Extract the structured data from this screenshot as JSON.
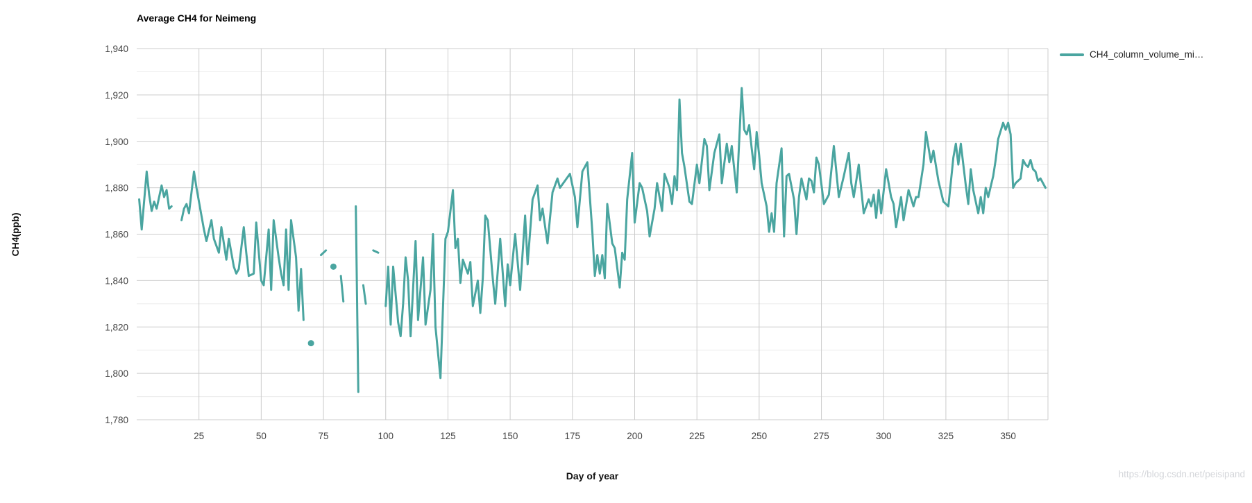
{
  "title": "Average CH4 for Neimeng",
  "watermark": "https://blog.csdn.net/peisipand",
  "legend": {
    "label": "CH4_column_volume_mi…",
    "swatch_color": "#4aa5a0"
  },
  "colors": {
    "series": "#4aa5a0",
    "grid_major": "#cccccc",
    "grid_minor": "#ebebeb",
    "tick_label": "#444444",
    "title": "#000000",
    "watermark": "#d4d6da",
    "background": "#ffffff"
  },
  "chart_data": {
    "type": "line",
    "title": "Average CH4 for Neimeng",
    "xlabel": "Day of year",
    "ylabel": "CH4(ppb)",
    "xlim": [
      0,
      366
    ],
    "ylim": [
      1780,
      1940
    ],
    "x_ticks": [
      25,
      50,
      75,
      100,
      125,
      150,
      175,
      200,
      225,
      250,
      275,
      300,
      325,
      350
    ],
    "y_ticks": [
      1780,
      1800,
      1820,
      1840,
      1860,
      1880,
      1900,
      1920,
      1940
    ],
    "y_minor_ticks": [
      1790,
      1810,
      1830,
      1850,
      1870,
      1890,
      1910,
      1930
    ],
    "grid": "major-and-minor-horizontal, major-vertical",
    "legend_position": "right",
    "series": [
      {
        "name": "CH4_column_volume_mi…",
        "color": "#4aa5a0",
        "points": [
          [
            1,
            1875
          ],
          [
            2,
            1862
          ],
          [
            4,
            1887
          ],
          [
            5,
            1877
          ],
          [
            6,
            1870
          ],
          [
            7,
            1874
          ],
          [
            8,
            1871
          ],
          [
            10,
            1881
          ],
          [
            11,
            1876
          ],
          [
            12,
            1879
          ],
          [
            13,
            1871
          ],
          [
            14,
            1872
          ],
          [
            15,
            null
          ],
          [
            18,
            1866
          ],
          [
            19,
            1871
          ],
          [
            20,
            1873
          ],
          [
            21,
            1869
          ],
          [
            23,
            1887
          ],
          [
            24,
            1880
          ],
          [
            26,
            1868
          ],
          [
            27,
            1862
          ],
          [
            28,
            1857
          ],
          [
            30,
            1866
          ],
          [
            31,
            1858
          ],
          [
            33,
            1852
          ],
          [
            34,
            1863
          ],
          [
            36,
            1849
          ],
          [
            37,
            1858
          ],
          [
            39,
            1846
          ],
          [
            40,
            1843
          ],
          [
            41,
            1845
          ],
          [
            43,
            1863
          ],
          [
            44,
            1852
          ],
          [
            45,
            1842
          ],
          [
            47,
            1843
          ],
          [
            48,
            1865
          ],
          [
            50,
            1840
          ],
          [
            51,
            1838
          ],
          [
            53,
            1862
          ],
          [
            54,
            1836
          ],
          [
            55,
            1866
          ],
          [
            57,
            1850
          ],
          [
            58,
            1843
          ],
          [
            59,
            1838
          ],
          [
            60,
            1862
          ],
          [
            61,
            1836
          ],
          [
            62,
            1866
          ],
          [
            64,
            1850
          ],
          [
            65,
            1827
          ],
          [
            66,
            1845
          ],
          [
            67,
            1823
          ],
          [
            68,
            null
          ],
          [
            70,
            1813
          ],
          [
            71,
            null
          ],
          [
            74,
            1851
          ],
          [
            76,
            1853
          ],
          [
            77,
            null
          ],
          [
            79,
            1846
          ],
          [
            80,
            null
          ],
          [
            82,
            1842
          ],
          [
            83,
            1831
          ],
          [
            84,
            null
          ],
          [
            88,
            1872
          ],
          [
            89,
            1792
          ],
          [
            90,
            null
          ],
          [
            91,
            1838
          ],
          [
            92,
            1830
          ],
          [
            93,
            null
          ],
          [
            95,
            1853
          ],
          [
            97,
            1852
          ],
          [
            98,
            null
          ],
          [
            100,
            1829
          ],
          [
            101,
            1846
          ],
          [
            102,
            1821
          ],
          [
            103,
            1846
          ],
          [
            105,
            1822
          ],
          [
            106,
            1816
          ],
          [
            107,
            1830
          ],
          [
            108,
            1850
          ],
          [
            109,
            1840
          ],
          [
            110,
            1816
          ],
          [
            112,
            1857
          ],
          [
            113,
            1823
          ],
          [
            115,
            1850
          ],
          [
            116,
            1821
          ],
          [
            118,
            1836
          ],
          [
            119,
            1860
          ],
          [
            120,
            1820
          ],
          [
            122,
            1798
          ],
          [
            124,
            1858
          ],
          [
            125,
            1861
          ],
          [
            127,
            1879
          ],
          [
            128,
            1854
          ],
          [
            129,
            1858
          ],
          [
            130,
            1839
          ],
          [
            131,
            1849
          ],
          [
            133,
            1843
          ],
          [
            134,
            1848
          ],
          [
            135,
            1829
          ],
          [
            137,
            1840
          ],
          [
            138,
            1826
          ],
          [
            139,
            1841
          ],
          [
            140,
            1868
          ],
          [
            141,
            1866
          ],
          [
            143,
            1841
          ],
          [
            144,
            1830
          ],
          [
            146,
            1858
          ],
          [
            148,
            1829
          ],
          [
            149,
            1847
          ],
          [
            150,
            1838
          ],
          [
            152,
            1860
          ],
          [
            154,
            1836
          ],
          [
            156,
            1868
          ],
          [
            157,
            1847
          ],
          [
            159,
            1875
          ],
          [
            161,
            1881
          ],
          [
            162,
            1866
          ],
          [
            163,
            1871
          ],
          [
            165,
            1856
          ],
          [
            167,
            1878
          ],
          [
            169,
            1884
          ],
          [
            170,
            1880
          ],
          [
            172,
            1883
          ],
          [
            174,
            1886
          ],
          [
            176,
            1876
          ],
          [
            177,
            1863
          ],
          [
            179,
            1887
          ],
          [
            181,
            1891
          ],
          [
            183,
            1861
          ],
          [
            184,
            1842
          ],
          [
            185,
            1851
          ],
          [
            186,
            1843
          ],
          [
            187,
            1851
          ],
          [
            188,
            1841
          ],
          [
            189,
            1873
          ],
          [
            191,
            1856
          ],
          [
            192,
            1854
          ],
          [
            194,
            1837
          ],
          [
            195,
            1852
          ],
          [
            196,
            1849
          ],
          [
            197,
            1875
          ],
          [
            199,
            1895
          ],
          [
            200,
            1865
          ],
          [
            202,
            1882
          ],
          [
            203,
            1880
          ],
          [
            205,
            1870
          ],
          [
            206,
            1859
          ],
          [
            208,
            1871
          ],
          [
            209,
            1882
          ],
          [
            211,
            1870
          ],
          [
            212,
            1886
          ],
          [
            214,
            1880
          ],
          [
            215,
            1873
          ],
          [
            216,
            1885
          ],
          [
            217,
            1879
          ],
          [
            218,
            1918
          ],
          [
            219,
            1895
          ],
          [
            220,
            1889
          ],
          [
            222,
            1874
          ],
          [
            223,
            1873
          ],
          [
            225,
            1890
          ],
          [
            226,
            1882
          ],
          [
            228,
            1901
          ],
          [
            229,
            1898
          ],
          [
            230,
            1879
          ],
          [
            232,
            1895
          ],
          [
            234,
            1903
          ],
          [
            235,
            1882
          ],
          [
            237,
            1899
          ],
          [
            238,
            1891
          ],
          [
            239,
            1898
          ],
          [
            241,
            1878
          ],
          [
            243,
            1923
          ],
          [
            244,
            1905
          ],
          [
            245,
            1903
          ],
          [
            246,
            1907
          ],
          [
            247,
            1897
          ],
          [
            248,
            1888
          ],
          [
            249,
            1904
          ],
          [
            250,
            1894
          ],
          [
            251,
            1882
          ],
          [
            253,
            1872
          ],
          [
            254,
            1861
          ],
          [
            255,
            1869
          ],
          [
            256,
            1861
          ],
          [
            257,
            1882
          ],
          [
            259,
            1897
          ],
          [
            260,
            1859
          ],
          [
            261,
            1885
          ],
          [
            262,
            1886
          ],
          [
            264,
            1875
          ],
          [
            265,
            1860
          ],
          [
            266,
            1876
          ],
          [
            267,
            1884
          ],
          [
            269,
            1875
          ],
          [
            270,
            1884
          ],
          [
            271,
            1883
          ],
          [
            272,
            1878
          ],
          [
            273,
            1893
          ],
          [
            274,
            1890
          ],
          [
            276,
            1873
          ],
          [
            278,
            1877
          ],
          [
            280,
            1898
          ],
          [
            282,
            1876
          ],
          [
            284,
            1885
          ],
          [
            286,
            1895
          ],
          [
            287,
            1882
          ],
          [
            288,
            1876
          ],
          [
            290,
            1890
          ],
          [
            292,
            1869
          ],
          [
            294,
            1875
          ],
          [
            295,
            1872
          ],
          [
            296,
            1877
          ],
          [
            297,
            1867
          ],
          [
            298,
            1879
          ],
          [
            299,
            1869
          ],
          [
            301,
            1888
          ],
          [
            303,
            1876
          ],
          [
            304,
            1873
          ],
          [
            305,
            1863
          ],
          [
            307,
            1876
          ],
          [
            308,
            1866
          ],
          [
            310,
            1879
          ],
          [
            312,
            1872
          ],
          [
            313,
            1876
          ],
          [
            314,
            1876
          ],
          [
            316,
            1890
          ],
          [
            317,
            1904
          ],
          [
            319,
            1891
          ],
          [
            320,
            1896
          ],
          [
            322,
            1883
          ],
          [
            324,
            1874
          ],
          [
            326,
            1872
          ],
          [
            328,
            1893
          ],
          [
            329,
            1899
          ],
          [
            330,
            1890
          ],
          [
            331,
            1899
          ],
          [
            333,
            1881
          ],
          [
            334,
            1873
          ],
          [
            335,
            1888
          ],
          [
            336,
            1879
          ],
          [
            338,
            1869
          ],
          [
            339,
            1876
          ],
          [
            340,
            1869
          ],
          [
            341,
            1880
          ],
          [
            342,
            1876
          ],
          [
            344,
            1885
          ],
          [
            345,
            1892
          ],
          [
            346,
            1901
          ],
          [
            348,
            1908
          ],
          [
            349,
            1905
          ],
          [
            350,
            1908
          ],
          [
            351,
            1903
          ],
          [
            352,
            1880
          ],
          [
            353,
            1882
          ],
          [
            354,
            1883
          ],
          [
            355,
            1884
          ],
          [
            356,
            1892
          ],
          [
            357,
            1890
          ],
          [
            358,
            1889
          ],
          [
            359,
            1892
          ],
          [
            360,
            1888
          ],
          [
            361,
            1887
          ],
          [
            362,
            1883
          ],
          [
            363,
            1884
          ],
          [
            365,
            1880
          ]
        ]
      }
    ]
  }
}
